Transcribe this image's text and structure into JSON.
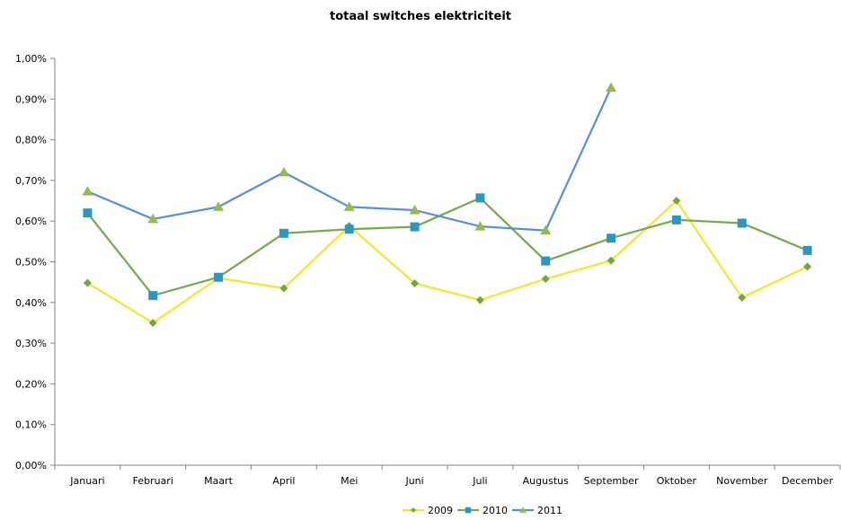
{
  "chart_data": {
    "type": "line",
    "title": "totaal switches elektriciteit",
    "xlabel": "",
    "ylabel": "",
    "categories": [
      "Januari",
      "Februari",
      "Maart",
      "April",
      "Mei",
      "Juni",
      "Juli",
      "Augustus",
      "September",
      "Oktober",
      "November",
      "December"
    ],
    "ylim": [
      0,
      0.01
    ],
    "y_ticks": [
      {
        "value": 0.0,
        "label": "0,00%"
      },
      {
        "value": 0.001,
        "label": "0,10%"
      },
      {
        "value": 0.002,
        "label": "0,20%"
      },
      {
        "value": 0.003,
        "label": "0,30%"
      },
      {
        "value": 0.004,
        "label": "0,40%"
      },
      {
        "value": 0.005,
        "label": "0,50%"
      },
      {
        "value": 0.006,
        "label": "0,60%"
      },
      {
        "value": 0.007,
        "label": "0,70%"
      },
      {
        "value": 0.008,
        "label": "0,80%"
      },
      {
        "value": 0.009,
        "label": "0,90%"
      },
      {
        "value": 0.01,
        "label": "1,00%"
      }
    ],
    "grid": false,
    "legend_position": "bottom",
    "series": [
      {
        "name": "2009",
        "color": "#f2e72d",
        "marker": "diamond",
        "marker_color": "#6fa83c",
        "values": [
          0.00448,
          0.0035,
          0.0046,
          0.00435,
          0.00588,
          0.00447,
          0.00406,
          0.00458,
          0.00503,
          0.0065,
          0.00412,
          0.00488
        ]
      },
      {
        "name": "2010",
        "color": "#77a94f",
        "marker": "square",
        "marker_color": "#2b97c0",
        "values": [
          0.0062,
          0.00417,
          0.00462,
          0.0057,
          0.0058,
          0.00586,
          0.00657,
          0.00502,
          0.00558,
          0.00603,
          0.00595,
          0.00528
        ]
      },
      {
        "name": "2011",
        "color": "#5c90d3",
        "marker": "triangle",
        "marker_color": "#98b94f",
        "values": [
          0.00673,
          0.00605,
          0.00635,
          0.0072,
          0.00635,
          0.00627,
          0.00587,
          0.00577,
          0.00928,
          null,
          null,
          null
        ]
      }
    ]
  }
}
